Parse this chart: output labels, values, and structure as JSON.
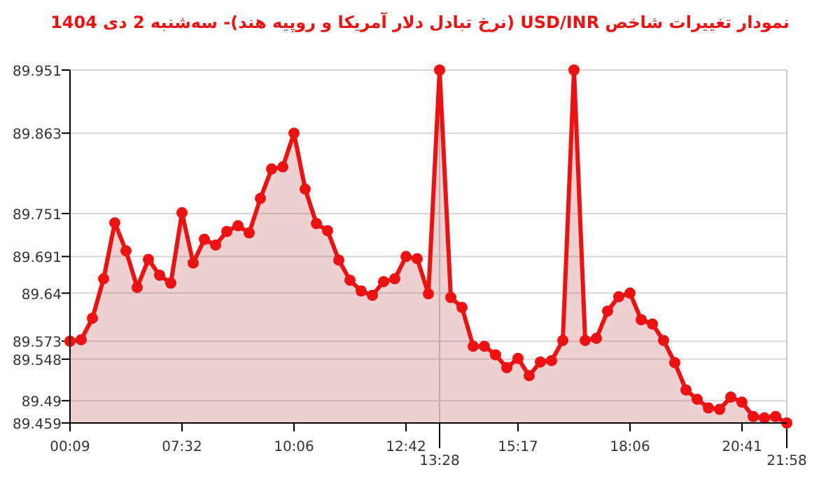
{
  "chart_data": {
    "type": "area",
    "title": "نمودار تغییرات شاخص USD/INR (نرخ تبادل دلار آمریکا و روپیه هند)- سه‌شنبه  2 دی 1404",
    "categories": [
      "00:09",
      null,
      null,
      null,
      null,
      null,
      null,
      null,
      null,
      null,
      "07:32",
      null,
      null,
      null,
      null,
      null,
      null,
      null,
      null,
      null,
      "10:06",
      null,
      null,
      null,
      null,
      null,
      null,
      null,
      null,
      null,
      "12:42",
      null,
      null,
      "13:28",
      null,
      null,
      null,
      null,
      null,
      null,
      "15:17",
      null,
      null,
      null,
      null,
      null,
      null,
      null,
      null,
      null,
      "18:06",
      null,
      null,
      null,
      null,
      null,
      null,
      null,
      null,
      null,
      "20:41",
      null,
      null,
      null,
      "21:58"
    ],
    "series": [
      {
        "color": "#ee1111",
        "values": [
          89.573,
          89.575,
          89.605,
          89.66,
          89.738,
          89.699,
          89.648,
          89.687,
          89.665,
          89.654,
          89.752,
          89.682,
          89.715,
          89.707,
          89.726,
          89.734,
          89.724,
          89.772,
          89.813,
          89.816,
          89.863,
          89.785,
          89.737,
          89.727,
          89.686,
          89.658,
          89.643,
          89.637,
          89.656,
          89.66,
          89.691,
          89.688,
          89.639,
          89.951,
          89.634,
          89.62,
          89.566,
          89.566,
          89.554,
          89.536,
          89.549,
          89.525,
          89.544,
          89.546,
          89.574,
          89.951,
          89.574,
          89.577,
          89.615,
          89.635,
          89.64,
          89.603,
          89.597,
          89.574,
          89.543,
          89.505,
          89.492,
          89.48,
          89.478,
          89.495,
          89.488,
          89.468,
          89.466,
          89.468,
          89.459
        ]
      }
    ],
    "ylim": [
      89.459,
      89.951
    ],
    "yticks": [
      89.459,
      89.49,
      89.548,
      89.573,
      89.64,
      89.691,
      89.751,
      89.863,
      89.951
    ],
    "grid": "y",
    "marker": "circle",
    "line_style": "solid"
  }
}
